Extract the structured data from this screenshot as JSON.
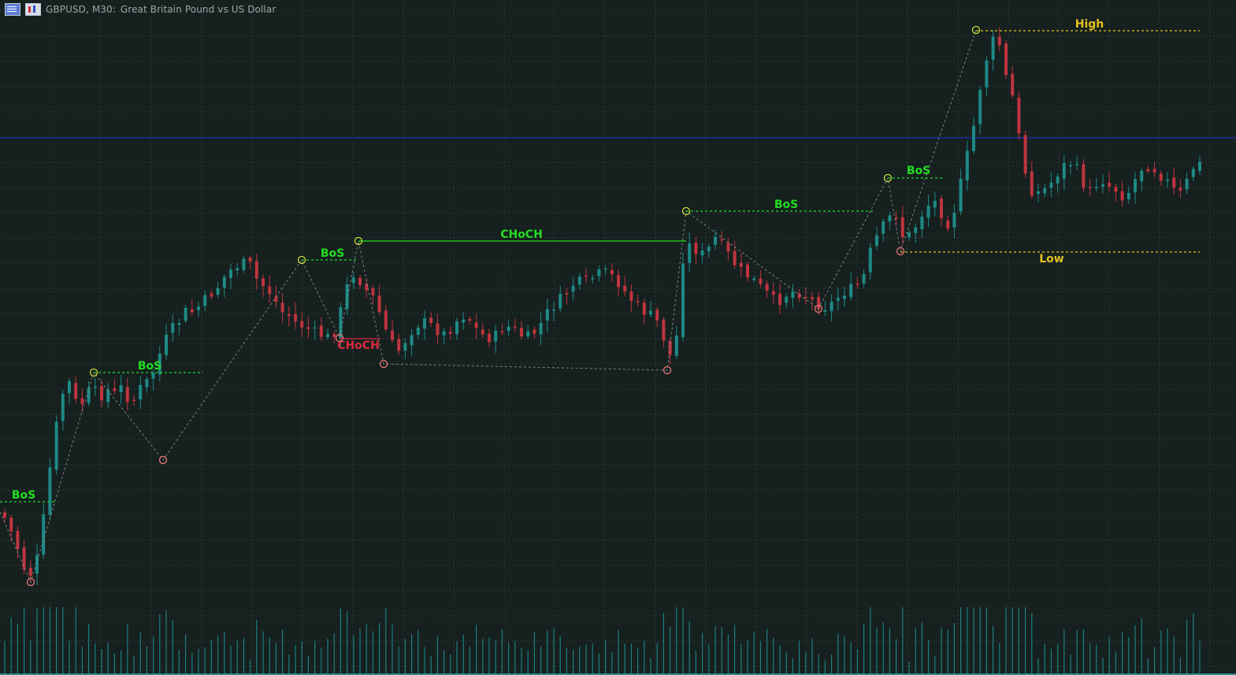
{
  "header": {
    "symbol": "GBPUSD, M30:",
    "description": "Great Britain Pound vs US Dollar",
    "icons": [
      "grid-icon",
      "chart-icon"
    ]
  },
  "colors": {
    "background": "#16201f",
    "grid": "#2b3a39",
    "bull": "#1e8a86",
    "bear": "#c0343f",
    "bos": "#22dd22",
    "choch_bull": "#22dd22",
    "choch_bear": "#dd2a40",
    "high_low": "#e3c21f",
    "swing_high_marker": "#c8e03a",
    "swing_low_marker": "#ea7676",
    "swing_path": "#8a9594",
    "price_line": "#1a2bb8",
    "volume": "#1d7e80"
  },
  "chart_data": {
    "type": "candlestick",
    "instrument": "GBPUSD",
    "timeframe": "M30",
    "description": "Great Britain Pound vs US Dollar",
    "candles": {
      "count": 186,
      "close_anchors": [
        [
          0,
          650
        ],
        [
          4,
          665
        ],
        [
          9,
          690
        ],
        [
          12,
          705
        ],
        [
          14,
          720
        ],
        [
          19,
          730
        ],
        [
          24,
          700
        ],
        [
          29,
          620
        ],
        [
          33,
          560
        ],
        [
          38,
          505
        ],
        [
          42,
          480
        ],
        [
          47,
          510
        ],
        [
          52,
          512
        ],
        [
          57,
          490
        ],
        [
          62,
          505
        ],
        [
          67,
          495
        ],
        [
          72,
          500
        ],
        [
          77,
          490
        ],
        [
          82,
          515
        ],
        [
          87,
          495
        ],
        [
          92,
          485
        ],
        [
          97,
          470
        ],
        [
          102,
          440
        ],
        [
          107,
          420
        ],
        [
          112,
          410
        ],
        [
          117,
          395
        ],
        [
          122,
          396
        ],
        [
          127,
          385
        ],
        [
          132,
          375
        ],
        [
          137,
          365
        ],
        [
          142,
          350
        ],
        [
          147,
          340
        ],
        [
          152,
          335
        ],
        [
          157,
          333
        ],
        [
          162,
          355
        ],
        [
          167,
          365
        ],
        [
          172,
          375
        ],
        [
          177,
          395
        ],
        [
          182,
          400
        ],
        [
          187,
          410
        ],
        [
          192,
          415
        ],
        [
          197,
          420
        ],
        [
          202,
          425
        ],
        [
          207,
          428
        ],
        [
          212,
          420
        ],
        [
          217,
          380
        ],
        [
          222,
          345
        ],
        [
          227,
          355
        ],
        [
          232,
          370
        ],
        [
          237,
          380
        ],
        [
          242,
          410
        ],
        [
          247,
          435
        ],
        [
          252,
          445
        ],
        [
          257,
          430
        ],
        [
          262,
          415
        ],
        [
          267,
          408
        ],
        [
          272,
          412
        ],
        [
          277,
          420
        ],
        [
          282,
          425
        ],
        [
          287,
          412
        ],
        [
          292,
          400
        ],
        [
          297,
          405
        ],
        [
          302,
          420
        ],
        [
          307,
          428
        ],
        [
          312,
          430
        ],
        [
          317,
          418
        ],
        [
          322,
          415
        ],
        [
          327,
          420
        ],
        [
          332,
          430
        ],
        [
          337,
          425
        ],
        [
          342,
          412
        ],
        [
          347,
          395
        ],
        [
          352,
          385
        ],
        [
          357,
          375
        ],
        [
          362,
          362
        ],
        [
          367,
          358
        ],
        [
          372,
          356
        ],
        [
          377,
          350
        ],
        [
          382,
          345
        ],
        [
          387,
          350
        ],
        [
          392,
          360
        ],
        [
          397,
          375
        ],
        [
          402,
          385
        ],
        [
          407,
          395
        ],
        [
          412,
          400
        ],
        [
          417,
          410
        ],
        [
          422,
          440
        ],
        [
          427,
          465
        ],
        [
          432,
          330
        ],
        [
          437,
          310
        ],
        [
          442,
          320
        ],
        [
          447,
          325
        ],
        [
          452,
          300
        ],
        [
          457,
          312
        ],
        [
          462,
          325
        ],
        [
          467,
          340
        ],
        [
          472,
          348
        ],
        [
          477,
          355
        ],
        [
          482,
          365
        ],
        [
          487,
          375
        ],
        [
          492,
          385
        ],
        [
          497,
          375
        ],
        [
          502,
          370
        ],
        [
          507,
          372
        ],
        [
          512,
          378
        ],
        [
          517,
          385
        ],
        [
          522,
          390
        ],
        [
          527,
          385
        ],
        [
          532,
          375
        ],
        [
          537,
          368
        ],
        [
          542,
          365
        ],
        [
          547,
          352
        ],
        [
          552,
          315
        ],
        [
          557,
          295
        ],
        [
          562,
          280
        ],
        [
          567,
          268
        ],
        [
          572,
          300
        ],
        [
          577,
          298
        ],
        [
          582,
          280
        ],
        [
          587,
          262
        ],
        [
          592,
          255
        ],
        [
          597,
          272
        ],
        [
          602,
          288
        ],
        [
          607,
          248
        ],
        [
          612,
          205
        ],
        [
          617,
          160
        ],
        [
          622,
          100
        ],
        [
          627,
          60
        ],
        [
          632,
          42
        ],
        [
          637,
          95
        ],
        [
          642,
          125
        ],
        [
          647,
          190
        ],
        [
          652,
          240
        ],
        [
          657,
          245
        ],
        [
          662,
          240
        ],
        [
          667,
          230
        ],
        [
          672,
          215
        ],
        [
          677,
          205
        ],
        [
          682,
          212
        ],
        [
          687,
          235
        ],
        [
          692,
          245
        ],
        [
          697,
          225
        ],
        [
          702,
          235
        ],
        [
          707,
          240
        ],
        [
          712,
          250
        ],
        [
          717,
          240
        ],
        [
          722,
          215
        ],
        [
          727,
          210
        ],
        [
          732,
          215
        ],
        [
          737,
          225
        ],
        [
          742,
          235
        ],
        [
          747,
          250
        ],
        [
          752,
          232
        ],
        [
          757,
          210
        ],
        [
          762,
          208
        ],
        [
          767,
          218
        ],
        [
          772,
          228
        ],
        [
          777,
          232
        ],
        [
          782,
          237
        ],
        [
          787,
          240
        ],
        [
          792,
          228
        ],
        [
          797,
          215
        ],
        [
          802,
          200
        ],
        [
          805,
          190
        ]
      ]
    },
    "price_line": "current bid",
    "swing_highs": [
      "119,473",
      "383,330",
      "455,306",
      "871,268",
      "1127,226",
      "1239,38"
    ],
    "swing_lows": [
      "39,739",
      "207,584",
      "431,429",
      "487,462",
      "847,470",
      "1039,392",
      "1143,319"
    ],
    "structure_breaks": [
      {
        "label": "BoS",
        "kind": "bull",
        "style": "dashed"
      },
      {
        "label": "BoS",
        "kind": "bull",
        "style": "dashed"
      },
      {
        "label": "BoS",
        "kind": "bull",
        "style": "dashed"
      },
      {
        "label": "CHoCH",
        "kind": "bear",
        "style": "solid"
      },
      {
        "label": "CHoCH",
        "kind": "bull",
        "style": "solid"
      },
      {
        "label": "BoS",
        "kind": "bull",
        "style": "dashed"
      },
      {
        "label": "BoS",
        "kind": "bull",
        "style": "dashed"
      }
    ],
    "levels": [
      {
        "label": "High",
        "kind": "high"
      },
      {
        "label": "Low",
        "kind": "low"
      }
    ],
    "volume": "tick volume histogram"
  }
}
